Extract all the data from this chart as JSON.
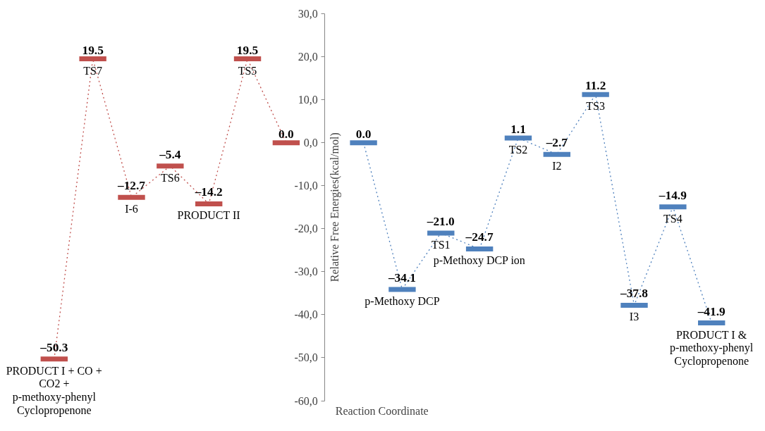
{
  "chart_data": {
    "type": "line",
    "xlabel": "Reaction Coordinate",
    "ylabel": "Relative Free Energies(kcal/mol)",
    "categories": [
      "PRODUCT I + CO + CO2 + p-methoxy-phenyl Cyclopropenone",
      "TS7",
      "I-6",
      "TS6",
      "PRODUCT II",
      "TS5",
      null,
      null,
      null,
      "p-Methoxy DCP",
      "TS1",
      "p-Methoxy DCP ion",
      "TS2",
      "I2",
      "TS3",
      "I3",
      "TS4",
      "PRODUCT I & p-methoxy-phenyl Cyclopropenone"
    ],
    "series": [
      {
        "color": "#c0504d",
        "values": [
          -50.3,
          19.5,
          -12.7,
          -5.4,
          -14.2,
          19.5,
          0.0,
          null,
          null,
          null,
          null,
          null,
          null,
          null,
          null,
          null,
          null,
          null
        ],
        "value_labels": [
          "–50.3",
          "19.5",
          "–12.7",
          "–5.4",
          "–14.2",
          "19.5",
          "0.0",
          null,
          null,
          null,
          null,
          null,
          null,
          null,
          null,
          null,
          null,
          null
        ]
      },
      {
        "color": "#4f81bd",
        "values": [
          null,
          null,
          null,
          null,
          null,
          null,
          null,
          null,
          0.0,
          -34.1,
          -21.0,
          -24.7,
          1.1,
          -2.7,
          11.2,
          -37.8,
          -14.9,
          -41.9
        ],
        "value_labels": [
          null,
          null,
          null,
          null,
          null,
          null,
          null,
          null,
          "0.0",
          "–34.1",
          "–21.0",
          "–24.7",
          "1.1",
          "–2.7",
          "11.2",
          "–37.8",
          "–14.9",
          "–41.9"
        ]
      }
    ],
    "line_style": "dotted",
    "ylim": [
      -60,
      30
    ],
    "yticks": [
      {
        "value": -60,
        "label": "-60,0"
      },
      {
        "value": -50,
        "label": "-50,0"
      },
      {
        "value": -40,
        "label": "-40,0"
      },
      {
        "value": -30,
        "label": "-30,0"
      },
      {
        "value": -20,
        "label": "-20,0"
      },
      {
        "value": -10,
        "label": "-10,0"
      },
      {
        "value": 0,
        "label": "0,0"
      },
      {
        "value": 10,
        "label": "10,0"
      },
      {
        "value": 20,
        "label": "20,0"
      },
      {
        "value": 30,
        "label": "30,0"
      }
    ],
    "grid": false
  }
}
